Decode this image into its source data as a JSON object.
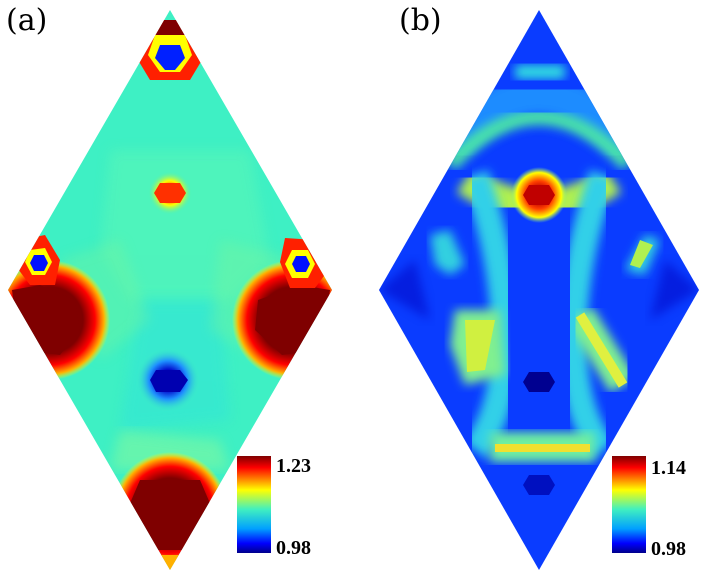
{
  "panels": [
    {
      "label": "(a)",
      "colorbar": {
        "max": "1.23",
        "min": "0.98"
      },
      "colormap": "jet"
    },
    {
      "label": "(b)",
      "colorbar": {
        "max": "1.14",
        "min": "0.98"
      },
      "colormap": "jet"
    }
  ],
  "colors": {
    "jet_dark_red": "#800000",
    "jet_red": "#ff0000",
    "jet_yellow": "#ffff00",
    "jet_cyan": "#3cf0c8",
    "jet_blue": "#0000ff",
    "jet_dark_blue": "#00008b"
  }
}
